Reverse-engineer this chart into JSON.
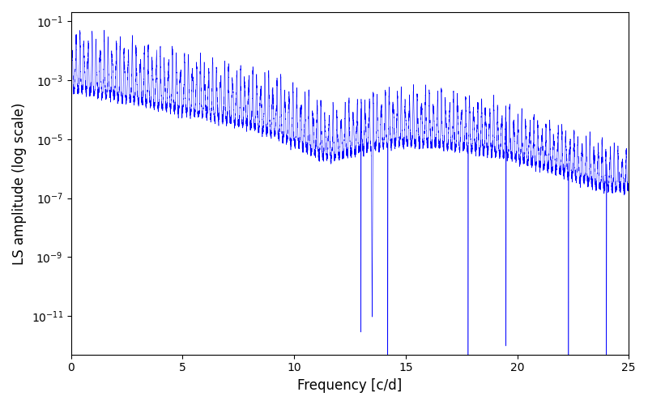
{
  "title": "",
  "xlabel": "Frequency [c/d]",
  "ylabel": "LS amplitude (log scale)",
  "xlim": [
    0,
    25
  ],
  "ylim": [
    5e-13,
    0.2
  ],
  "yticks": [
    1e-11,
    1e-09,
    1e-07,
    1e-05,
    0.001,
    0.1
  ],
  "line_color": "#0000ff",
  "background_color": "#ffffff",
  "figsize": [
    8.0,
    5.0
  ],
  "dpi": 100,
  "seed": 42,
  "freq_max": 25.0,
  "n_points": 8000
}
